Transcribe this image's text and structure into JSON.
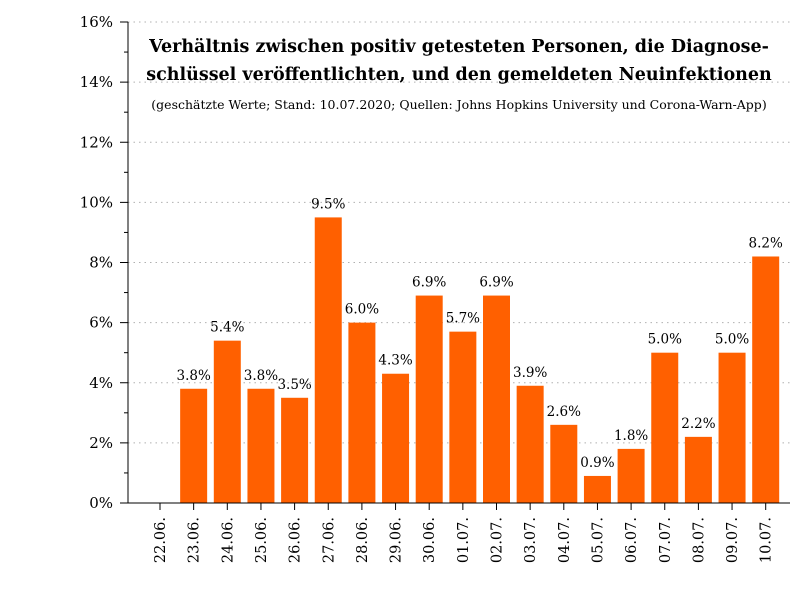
{
  "chart_data": {
    "type": "bar",
    "title_lines": [
      "Verhältnis zwischen positiv getesteten Personen, die Diagnose-",
      "schlüssel veröffentlichten, und den gemeldeten Neuinfektionen"
    ],
    "subtitle": "(geschätzte Werte; Stand: 10.07.2020; Quellen: Johns Hopkins University und Corona-Warn-App)",
    "xlabel": "",
    "ylabel": "",
    "ylim": [
      0,
      16
    ],
    "yticks": [
      0,
      2,
      4,
      6,
      8,
      10,
      12,
      14,
      16
    ],
    "ytick_labels": [
      "0%",
      "2%",
      "4%",
      "6%",
      "8%",
      "10%",
      "12%",
      "14%",
      "16%"
    ],
    "grid": true,
    "bar_color": "#ff6000",
    "categories": [
      "22.06.",
      "23.06.",
      "24.06.",
      "25.06.",
      "26.06.",
      "27.06.",
      "28.06.",
      "29.06.",
      "30.06.",
      "01.07.",
      "02.07.",
      "03.07.",
      "04.07.",
      "05.07.",
      "06.07.",
      "07.07.",
      "08.07.",
      "09.07.",
      "10.07."
    ],
    "values": [
      0,
      3.8,
      5.4,
      3.8,
      3.5,
      9.5,
      6.0,
      4.3,
      6.9,
      5.7,
      6.9,
      3.9,
      2.6,
      0.9,
      1.8,
      5.0,
      2.2,
      5.0,
      8.2
    ],
    "value_labels": [
      "",
      "3.8%",
      "5.4%",
      "3.8%",
      "3.5%",
      "9.5%",
      "6.0%",
      "4.3%",
      "6.9%",
      "5.7%",
      "6.9%",
      "3.9%",
      "2.6%",
      "0.9%",
      "1.8%",
      "5.0%",
      "2.2%",
      "5.0%",
      "8.2%"
    ]
  }
}
